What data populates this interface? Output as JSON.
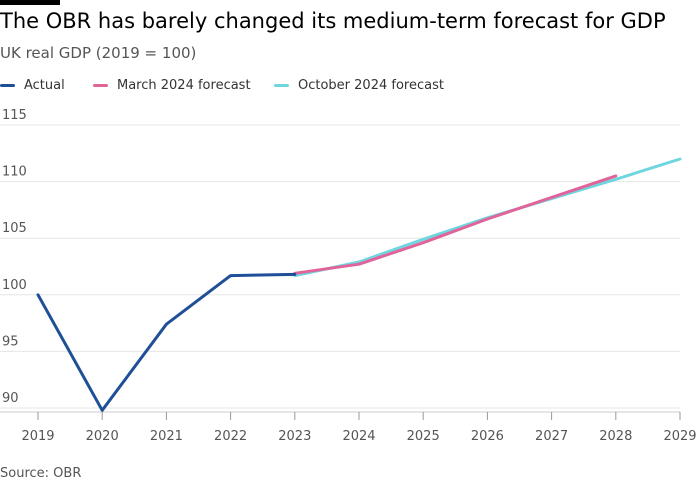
{
  "header": {
    "title": "The OBR has barely changed its medium-term forecast for GDP",
    "subtitle": "UK real GDP (2019 = 100)"
  },
  "footer": {
    "source": "Source: OBR"
  },
  "colors": {
    "actual": "#1f4f96",
    "march": "#e0649a",
    "october": "#6fd6e0",
    "grid": "#e6e6e6",
    "axis": "#555555"
  },
  "chart_data": {
    "type": "line",
    "ylim": [
      90,
      115
    ],
    "xlim": [
      2019,
      2029
    ],
    "y_ticks": [
      90,
      95,
      100,
      105,
      110,
      115
    ],
    "x_ticks": [
      2019,
      2020,
      2021,
      2022,
      2023,
      2024,
      2025,
      2026,
      2027,
      2028,
      2029
    ],
    "grid": true,
    "legend_position": "top-left",
    "series": [
      {
        "name": "Actual",
        "color_key": "actual",
        "points": [
          [
            2019,
            100.0
          ],
          [
            2020,
            89.8
          ],
          [
            2021,
            97.4
          ],
          [
            2022,
            101.7
          ],
          [
            2023,
            101.8
          ]
        ]
      },
      {
        "name": "March 2024 forecast",
        "color_key": "march",
        "points": [
          [
            2023,
            101.9
          ],
          [
            2024,
            102.7
          ],
          [
            2025,
            104.6
          ],
          [
            2026,
            106.7
          ],
          [
            2027,
            108.6
          ],
          [
            2028,
            110.5
          ]
        ]
      },
      {
        "name": "October 2024 forecast",
        "color_key": "october",
        "points": [
          [
            2023,
            101.7
          ],
          [
            2024,
            102.9
          ],
          [
            2025,
            104.9
          ],
          [
            2026,
            106.8
          ],
          [
            2027,
            108.5
          ],
          [
            2028,
            110.2
          ],
          [
            2029,
            112.0
          ]
        ]
      }
    ]
  }
}
